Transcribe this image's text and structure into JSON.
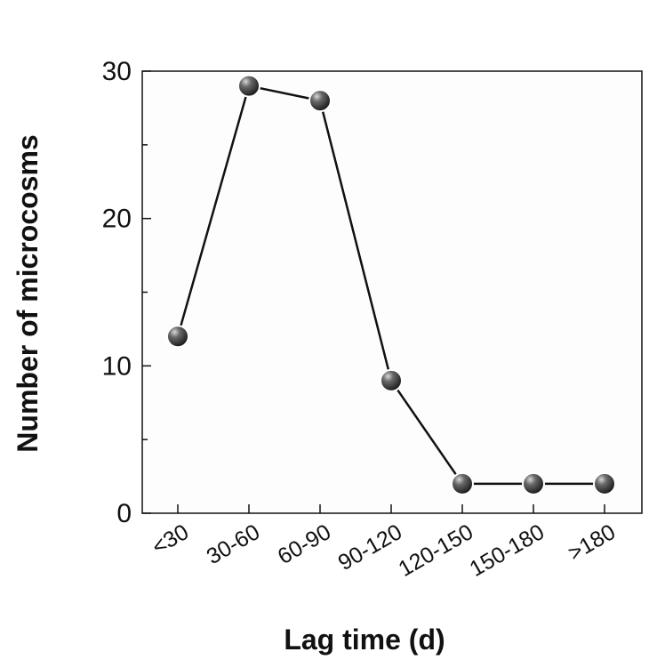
{
  "chart_data": {
    "type": "line",
    "categories": [
      "<30",
      "30-60",
      "60-90",
      "90-120",
      "120-150",
      "150-180",
      ">180"
    ],
    "values": [
      12,
      29,
      28,
      9,
      2,
      2,
      2
    ],
    "xlabel": "Lag time (d)",
    "ylabel": "Number of microcosms",
    "ylim": [
      0,
      30
    ],
    "yticks": [
      0,
      10,
      20,
      30
    ],
    "grid": false,
    "colors": {
      "line": "#111111",
      "marker": "#3a3a3a",
      "axis": "#111111",
      "plot_background": "#fdfdfd"
    }
  }
}
